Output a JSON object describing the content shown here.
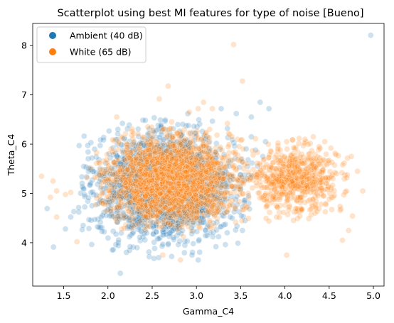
{
  "chart_data": {
    "type": "scatter",
    "title": "Scatterplot using best MI features for type of noise [Bueno]",
    "xlabel": "Gamma_C4",
    "ylabel": "Theta_C4",
    "xlim": [
      1.15,
      5.12
    ],
    "ylim": [
      3.12,
      8.45
    ],
    "xticks": [
      1.5,
      2.0,
      2.5,
      3.0,
      3.5,
      4.0,
      4.5,
      5.0
    ],
    "yticks": [
      4,
      5,
      6,
      7,
      8
    ],
    "xtick_labels": [
      "1.5",
      "2.0",
      "2.5",
      "3.0",
      "3.5",
      "4.0",
      "4.5",
      "5.0"
    ],
    "ytick_labels": [
      "4",
      "5",
      "6",
      "7",
      "8"
    ],
    "grid": false,
    "legend_position": "top-left",
    "legend": [
      "Ambient (40 dB)",
      "White (65 dB)"
    ],
    "series": [
      {
        "name": "Ambient (40 dB)",
        "color": "#1f77b4",
        "clusters": [
          {
            "center": [
              2.65,
              5.15
            ],
            "spread": [
              0.38,
              0.52
            ],
            "count": 2200
          }
        ],
        "points": [
          [
            4.97,
            8.21
          ],
          [
            2.14,
            3.38
          ],
          [
            3.72,
            6.85
          ],
          [
            3.82,
            6.72
          ],
          [
            3.62,
            6.55
          ],
          [
            3.45,
            6.62
          ],
          [
            3.28,
            6.72
          ],
          [
            3.35,
            6.32
          ],
          [
            3.78,
            6.05
          ],
          [
            3.75,
            5.75
          ],
          [
            3.62,
            6.15
          ],
          [
            1.82,
            5.72
          ],
          [
            1.78,
            5.45
          ],
          [
            1.82,
            4.75
          ],
          [
            1.72,
            4.35
          ],
          [
            1.58,
            4.52
          ],
          [
            1.52,
            4.28
          ],
          [
            2.05,
            3.85
          ],
          [
            2.25,
            3.92
          ],
          [
            2.52,
            3.68
          ],
          [
            2.72,
            3.72
          ],
          [
            2.95,
            3.75
          ],
          [
            3.02,
            3.65
          ],
          [
            3.22,
            3.92
          ],
          [
            3.52,
            4.25
          ],
          [
            3.55,
            4.45
          ],
          [
            3.48,
            5.25
          ],
          [
            3.58,
            5.55
          ]
        ]
      },
      {
        "name": "White (65 dB)",
        "color": "#ff7f0e",
        "clusters": [
          {
            "center": [
              2.72,
              5.28
            ],
            "spread": [
              0.34,
              0.4
            ],
            "count": 2200
          },
          {
            "center": [
              4.12,
              5.28
            ],
            "spread": [
              0.24,
              0.33
            ],
            "count": 650
          }
        ],
        "points": [
          [
            3.42,
            8.02
          ],
          [
            3.52,
            7.28
          ],
          [
            2.68,
            7.18
          ],
          [
            2.58,
            6.92
          ],
          [
            2.92,
            6.65
          ],
          [
            3.08,
            6.85
          ],
          [
            3.18,
            6.72
          ],
          [
            3.02,
            6.72
          ],
          [
            2.72,
            6.45
          ],
          [
            2.45,
            6.35
          ],
          [
            3.35,
            6.42
          ],
          [
            4.32,
            6.15
          ],
          [
            4.45,
            6.05
          ],
          [
            4.22,
            6.02
          ],
          [
            4.02,
            6.05
          ],
          [
            1.25,
            5.35
          ],
          [
            1.38,
            5.25
          ],
          [
            1.42,
            5.05
          ],
          [
            1.52,
            4.98
          ],
          [
            1.58,
            5.02
          ],
          [
            1.35,
            4.92
          ],
          [
            1.42,
            4.52
          ],
          [
            1.65,
            4.02
          ],
          [
            4.02,
            3.75
          ],
          [
            4.65,
            4.05
          ],
          [
            4.72,
            4.25
          ],
          [
            4.88,
            5.05
          ],
          [
            4.82,
            5.45
          ],
          [
            4.75,
            5.75
          ],
          [
            4.52,
            5.92
          ],
          [
            2.82,
            3.65
          ],
          [
            2.62,
            3.75
          ],
          [
            2.15,
            6.15
          ],
          [
            2.1,
            6.55
          ]
        ]
      }
    ]
  }
}
